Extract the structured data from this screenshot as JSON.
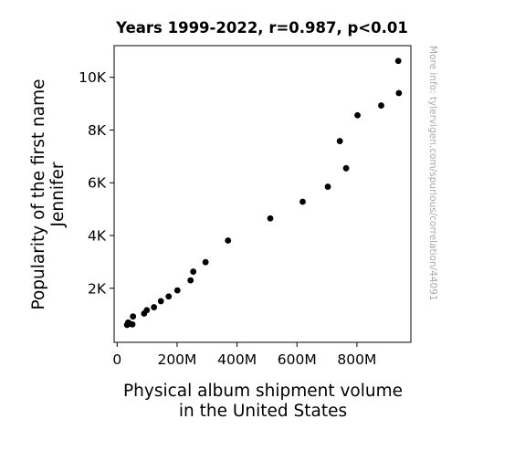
{
  "chart_data": {
    "type": "scatter",
    "title": "Years 1999-2022, r=0.987, p<0.01",
    "xlabel_lines": [
      "Physical album shipment volume",
      "in the United States"
    ],
    "ylabel_lines": [
      "Popularity of the first name",
      "Jennifer"
    ],
    "watermark": "More info: tylervigen.com/spurious/correlation/44091",
    "xlim": [
      -10,
      980
    ],
    "ylim": [
      -50,
      11200
    ],
    "x_ticks": [
      {
        "value": 0,
        "label": "0"
      },
      {
        "value": 200,
        "label": "200M"
      },
      {
        "value": 400,
        "label": "400M"
      },
      {
        "value": 600,
        "label": "600M"
      },
      {
        "value": 800,
        "label": "800M"
      }
    ],
    "y_ticks": [
      {
        "value": 2000,
        "label": "2K"
      },
      {
        "value": 4000,
        "label": "4K"
      },
      {
        "value": 6000,
        "label": "6K"
      },
      {
        "value": 8000,
        "label": "8K"
      },
      {
        "value": 10000,
        "label": "10K"
      }
    ],
    "grid": false,
    "marker_color": "#000000",
    "points": [
      {
        "x": 938,
        "y": 10620
      },
      {
        "x": 940,
        "y": 9400
      },
      {
        "x": 881,
        "y": 8930
      },
      {
        "x": 802,
        "y": 8560
      },
      {
        "x": 743,
        "y": 7580
      },
      {
        "x": 764,
        "y": 6550
      },
      {
        "x": 703,
        "y": 5850
      },
      {
        "x": 619,
        "y": 5280
      },
      {
        "x": 511,
        "y": 4650
      },
      {
        "x": 370,
        "y": 3810
      },
      {
        "x": 295,
        "y": 2990
      },
      {
        "x": 254,
        "y": 2630
      },
      {
        "x": 245,
        "y": 2300
      },
      {
        "x": 201,
        "y": 1920
      },
      {
        "x": 172,
        "y": 1690
      },
      {
        "x": 146,
        "y": 1510
      },
      {
        "x": 123,
        "y": 1280
      },
      {
        "x": 99,
        "y": 1170
      },
      {
        "x": 90,
        "y": 1040
      },
      {
        "x": 53,
        "y": 930
      },
      {
        "x": 37,
        "y": 700
      },
      {
        "x": 43,
        "y": 650
      },
      {
        "x": 51,
        "y": 630
      },
      {
        "x": 33,
        "y": 610
      }
    ]
  }
}
